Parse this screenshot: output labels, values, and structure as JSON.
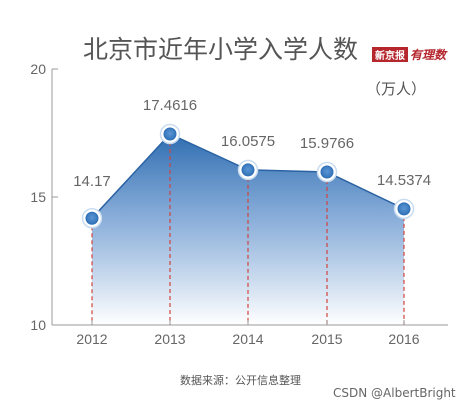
{
  "chart_data": {
    "type": "area",
    "title": "北京市近年小学入学人数",
    "unit": "（万人）",
    "categories": [
      "2012",
      "2013",
      "2014",
      "2015",
      "2016"
    ],
    "values": [
      14.17,
      17.4616,
      16.0575,
      15.9766,
      14.5374
    ],
    "value_labels": [
      "14.17",
      "17.4616",
      "16.0575",
      "15.9766",
      "14.5374"
    ],
    "ylim": [
      10,
      20
    ],
    "yticks": [
      10,
      15,
      20
    ],
    "grid": false,
    "legend": "none",
    "source": "数据来源：公开信息整理",
    "colors": {
      "fill_top": "#2e6db1",
      "fill_bottom": "#ffffff",
      "point_fill": "#2f70b7",
      "dash_line": "#d0443e",
      "axis": "#9a9a9a"
    }
  },
  "brand": {
    "box_text": "新京报",
    "script_text": "有理数"
  },
  "watermark": "CSDN @AlbertBright"
}
